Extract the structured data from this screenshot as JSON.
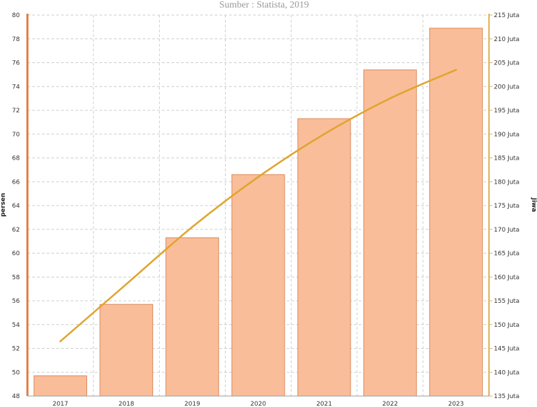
{
  "chart_data": {
    "type": "bar",
    "subtitle": "Sumber : Statista, 2019",
    "categories": [
      "2017",
      "2018",
      "2019",
      "2020",
      "2021",
      "2022",
      "2023"
    ],
    "series": [
      {
        "type": "bar",
        "axis": "left",
        "values": [
          49.7,
          55.7,
          61.3,
          66.6,
          71.3,
          75.4,
          78.9
        ],
        "color": "#f9bd9a",
        "border_color": "#d98a5c"
      },
      {
        "type": "line",
        "axis": "right",
        "values": [
          146.5,
          158.5,
          170.5,
          181.0,
          190.0,
          197.5,
          203.5
        ],
        "color": "#e0a42f"
      }
    ],
    "y_left": {
      "label": "persen",
      "range": [
        48,
        80
      ],
      "step": 2,
      "color": "#e07b39"
    },
    "y_right": {
      "label": "Jiwa",
      "range": [
        135,
        215
      ],
      "step": 5,
      "tick_suffix": " Juta",
      "color": "#e0b050"
    },
    "grid": true,
    "legend": "none"
  }
}
